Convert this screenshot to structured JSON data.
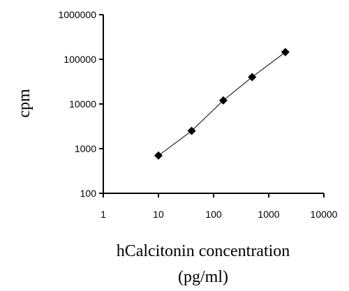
{
  "chart_data": {
    "type": "line",
    "title": "",
    "xlabel_line1": "hCalcitonin concentration",
    "xlabel_line2": "(pg/ml)",
    "ylabel": "cpm",
    "x_scale": "log",
    "y_scale": "log",
    "xlim": [
      1,
      10000
    ],
    "ylim": [
      100,
      1000000
    ],
    "x_ticks": [
      1,
      10,
      100,
      1000,
      10000
    ],
    "x_tick_labels": [
      "1",
      "10",
      "100",
      "1000",
      "10000"
    ],
    "y_ticks": [
      100,
      1000,
      10000,
      100000,
      1000000
    ],
    "y_tick_labels": [
      "100",
      "1000",
      "10000",
      "100000",
      "1000000"
    ],
    "grid": false,
    "legend": "none",
    "marker": "diamond",
    "colors": {
      "line": "#000000",
      "marker": "#000000",
      "axis": "#000000"
    },
    "series": [
      {
        "x": [
          10,
          40,
          150,
          500,
          2000
        ],
        "y": [
          700,
          2500,
          12000,
          40000,
          145000
        ]
      }
    ]
  }
}
